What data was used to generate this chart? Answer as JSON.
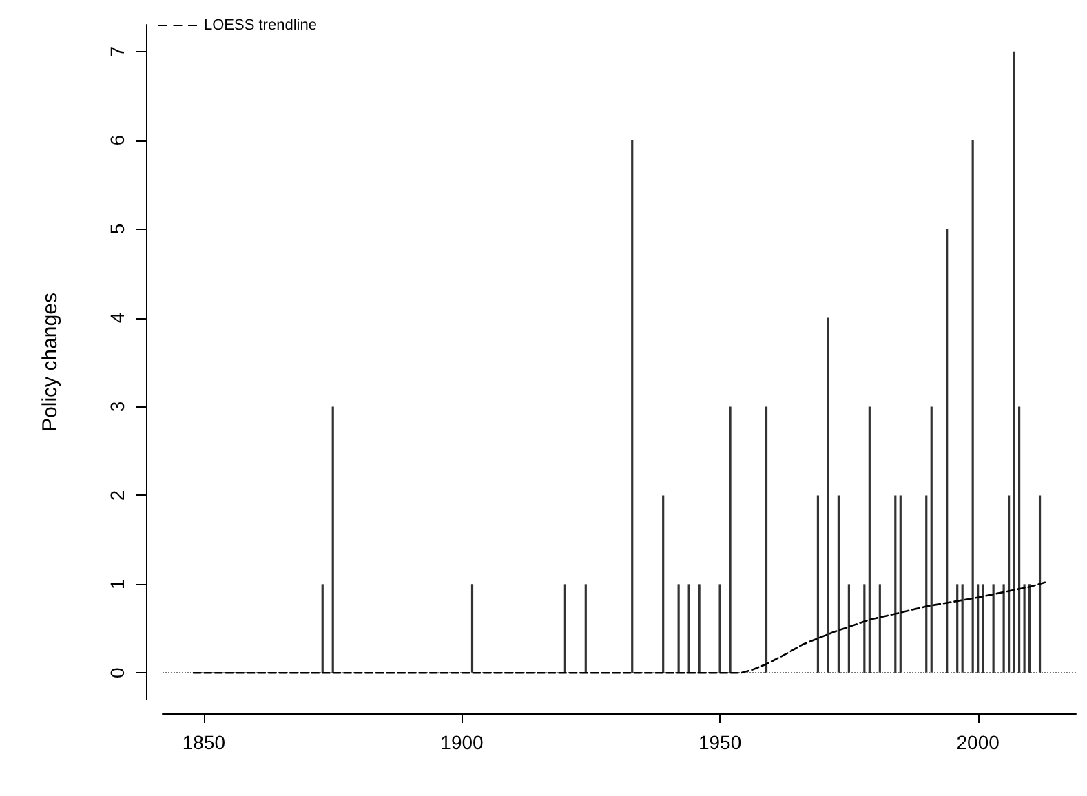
{
  "chart_data": {
    "type": "bar",
    "ylabel": "Policy changes",
    "xlim": [
      1842,
      2019
    ],
    "xticks": [
      1850,
      1900,
      1950,
      2000
    ],
    "ylim": [
      -0.3,
      7.3
    ],
    "yticks": [
      0,
      1,
      2,
      3,
      4,
      5,
      6,
      7
    ],
    "grid": false,
    "legend": "top left",
    "ref_lines": [
      {
        "axis": "y",
        "value": 0,
        "color": "#777777",
        "line_style": "dotted"
      }
    ],
    "series": [
      {
        "color": "#333333",
        "x": [
          1873,
          1875,
          1902,
          1920,
          1924,
          1933,
          1939,
          1942,
          1944,
          1946,
          1950,
          1952,
          1959,
          1969,
          1971,
          1973,
          1975,
          1978,
          1979,
          1981,
          1984,
          1985,
          1990,
          1991,
          1994,
          1996,
          1997,
          1999,
          2000,
          2001,
          2003,
          2005,
          2006,
          2007,
          2008,
          2009,
          2010,
          2012
        ],
        "values": [
          1,
          3,
          1,
          1,
          1,
          6,
          2,
          1,
          1,
          1,
          1,
          3,
          3,
          2,
          4,
          2,
          1,
          1,
          3,
          1,
          2,
          2,
          2,
          3,
          5,
          1,
          1,
          6,
          1,
          1,
          1,
          1,
          2,
          7,
          3,
          1,
          1,
          2
        ]
      },
      {
        "type": "line",
        "name": "LOESS trendline",
        "color": "#000000",
        "line_style": "dashed",
        "marker": "none",
        "x": [
          1848,
          1954,
          1956,
          1959,
          1963,
          1966,
          1969,
          1972,
          1975,
          1979,
          1985,
          1990,
          1995,
          2000,
          2005,
          2010,
          2013
        ],
        "values": [
          0,
          0,
          0.03,
          0.1,
          0.22,
          0.32,
          0.39,
          0.46,
          0.52,
          0.6,
          0.68,
          0.75,
          0.8,
          0.85,
          0.91,
          0.97,
          1.02
        ]
      }
    ]
  }
}
